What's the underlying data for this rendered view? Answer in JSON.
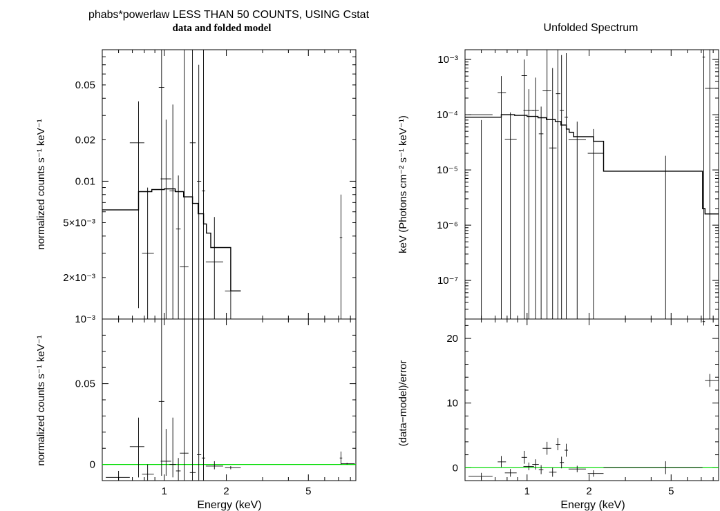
{
  "left": {
    "title": "phabs*powerlaw LESS THAN 50 COUNTS, USING Cstat",
    "subtitle": "data and folded model",
    "top_ylabel": "normalized counts s⁻¹ keV⁻¹",
    "bottom_ylabel": "normalized counts s⁻¹ keV⁻¹",
    "xlabel": "Energy (keV)"
  },
  "right": {
    "title": "Unfolded Spectrum",
    "top_ylabel": "keV (Photons cm⁻² s⁻¹ keV⁻¹)",
    "bottom_ylabel": "(data−model)/error",
    "xlabel": "Energy (keV)"
  },
  "colors": {
    "data": "#000000",
    "model": "#000000",
    "zero_line": "#00dd00"
  },
  "chart_data": [
    {
      "type": "scatter",
      "panel": "left-top",
      "x_scale": "log",
      "y_scale": "log",
      "xlim": [
        0.5,
        8.5
      ],
      "ylim": [
        0.001,
        0.09
      ],
      "x_ticks": [
        {
          "value": 1,
          "label": "1"
        },
        {
          "value": 2,
          "label": "2"
        },
        {
          "value": 5,
          "label": "5"
        }
      ],
      "y_ticks": [
        {
          "value": 0.001,
          "label": "10⁻³"
        },
        {
          "value": 0.002,
          "label": "2×10⁻³"
        },
        {
          "value": 0.005,
          "label": "5×10⁻³"
        },
        {
          "value": 0.01,
          "label": "0.01"
        },
        {
          "value": 0.02,
          "label": "0.02"
        },
        {
          "value": 0.05,
          "label": "0.05"
        }
      ],
      "model": {
        "edges": [
          0.5,
          0.75,
          0.87,
          1.0,
          1.13,
          1.24,
          1.37,
          1.46,
          1.55,
          1.6,
          1.68,
          2.1,
          2.35
        ],
        "values": [
          0.0062,
          0.0084,
          0.0087,
          0.0088,
          0.0084,
          0.0077,
          0.0069,
          0.0058,
          0.0049,
          0.0042,
          0.0033,
          0.0016
        ]
      },
      "points": [
        {
          "x": 0.75,
          "xlo": 0.68,
          "xhi": 0.8,
          "y": 0.019,
          "ylo": 0.0012,
          "yhi": 0.038
        },
        {
          "x": 0.83,
          "xlo": 0.78,
          "xhi": 0.89,
          "y": 0.003,
          "ylo": 0.001,
          "yhi": 0.009
        },
        {
          "x": 0.97,
          "xlo": 0.94,
          "xhi": 1.0,
          "y": 0.048,
          "ylo": 0.001,
          "yhi": 0.09
        },
        {
          "x": 1.02,
          "xlo": 0.96,
          "xhi": 1.08,
          "y": 0.0104,
          "ylo": 0.001,
          "yhi": 0.028
        },
        {
          "x": 1.1,
          "xlo": 1.06,
          "xhi": 1.14,
          "y": 0.0085,
          "ylo": 0.001,
          "yhi": 0.036
        },
        {
          "x": 1.17,
          "xlo": 1.14,
          "xhi": 1.2,
          "y": 0.0045,
          "ylo": 0.001,
          "yhi": 0.011
        },
        {
          "x": 1.25,
          "xlo": 1.19,
          "xhi": 1.31,
          "y": 0.0024,
          "ylo": 0.001,
          "yhi": 0.09
        },
        {
          "x": 1.37,
          "xlo": 1.33,
          "xhi": 1.42,
          "y": 0.019,
          "ylo": 0.001,
          "yhi": 0.09
        },
        {
          "x": 1.47,
          "xlo": 1.44,
          "xhi": 1.51,
          "y": 0.01,
          "ylo": 0.001,
          "yhi": 0.07
        },
        {
          "x": 1.55,
          "xlo": 1.52,
          "xhi": 1.58,
          "y": 0.0085,
          "ylo": 0.001,
          "yhi": 0.09
        },
        {
          "x": 1.75,
          "xlo": 1.59,
          "xhi": 1.93,
          "y": 0.0026,
          "ylo": 0.001,
          "yhi": 0.0055
        },
        {
          "x": 2.1,
          "xlo": 1.97,
          "xhi": 2.35,
          "y": 0.0016,
          "ylo": 0.001,
          "yhi": 0.0027
        },
        {
          "x": 7.2,
          "xlo": 7.1,
          "xhi": 7.3,
          "y": 0.0039,
          "ylo": 0.001,
          "yhi": 0.008
        }
      ]
    },
    {
      "type": "scatter",
      "panel": "left-bottom",
      "x_scale": "log",
      "y_scale": "linear",
      "xlim": [
        0.5,
        8.5
      ],
      "ylim": [
        -0.01,
        0.09
      ],
      "x_ticks": [
        {
          "value": 1,
          "label": "1"
        },
        {
          "value": 2,
          "label": "2"
        },
        {
          "value": 5,
          "label": "5"
        }
      ],
      "y_ticks": [
        {
          "value": 0,
          "label": "0"
        },
        {
          "value": 0.05,
          "label": "0.05"
        }
      ],
      "points": [
        {
          "x": 0.6,
          "xlo": 0.52,
          "xhi": 0.68,
          "y": -0.008,
          "ylo": -0.01,
          "yhi": -0.004
        },
        {
          "x": 0.75,
          "xlo": 0.68,
          "xhi": 0.8,
          "y": 0.011,
          "ylo": -0.008,
          "yhi": 0.029
        },
        {
          "x": 0.83,
          "xlo": 0.78,
          "xhi": 0.89,
          "y": -0.006,
          "ylo": -0.01,
          "yhi": 0.0
        },
        {
          "x": 0.97,
          "xlo": 0.94,
          "xhi": 1.0,
          "y": 0.039,
          "ylo": -0.007,
          "yhi": 0.09
        },
        {
          "x": 1.02,
          "xlo": 0.96,
          "xhi": 1.08,
          "y": 0.002,
          "ylo": -0.007,
          "yhi": 0.022
        },
        {
          "x": 1.1,
          "xlo": 1.06,
          "xhi": 1.14,
          "y": 0.0,
          "ylo": -0.008,
          "yhi": 0.029
        },
        {
          "x": 1.17,
          "xlo": 1.14,
          "xhi": 1.2,
          "y": -0.004,
          "ylo": -0.01,
          "yhi": 0.004
        },
        {
          "x": 1.25,
          "xlo": 1.19,
          "xhi": 1.31,
          "y": 0.007,
          "ylo": -0.01,
          "yhi": 0.09
        },
        {
          "x": 1.37,
          "xlo": 1.33,
          "xhi": 1.42,
          "y": -0.005,
          "ylo": -0.01,
          "yhi": 0.09
        },
        {
          "x": 1.47,
          "xlo": 1.44,
          "xhi": 1.51,
          "y": 0.006,
          "ylo": -0.01,
          "yhi": 0.09
        },
        {
          "x": 1.55,
          "xlo": 1.52,
          "xhi": 1.58,
          "y": 0.004,
          "ylo": -0.01,
          "yhi": 0.09
        },
        {
          "x": 1.75,
          "xlo": 1.59,
          "xhi": 1.93,
          "y": -0.001,
          "ylo": -0.003,
          "yhi": 0.002
        },
        {
          "x": 2.1,
          "xlo": 1.97,
          "xhi": 2.35,
          "y": -0.002,
          "ylo": -0.003,
          "yhi": -0.001
        },
        {
          "x": 7.2,
          "xlo": 7.1,
          "xhi": 7.3,
          "y": 0.004,
          "ylo": 0.0,
          "yhi": 0.008
        },
        {
          "x": 7.7,
          "xlo": 7.2,
          "xhi": 8.4,
          "y": 0.0005,
          "ylo": 0.0,
          "yhi": 0.001
        }
      ]
    },
    {
      "type": "scatter",
      "panel": "right-top",
      "x_scale": "log",
      "y_scale": "log",
      "xlim": [
        0.5,
        8.5
      ],
      "ylim": [
        2e-08,
        0.0015
      ],
      "x_ticks": [
        {
          "value": 1,
          "label": "1"
        },
        {
          "value": 2,
          "label": "2"
        },
        {
          "value": 5,
          "label": "5"
        }
      ],
      "y_ticks": [
        {
          "value": 1e-07,
          "label": "10⁻⁷"
        },
        {
          "value": 1e-06,
          "label": "10⁻⁶"
        },
        {
          "value": 1e-05,
          "label": "10⁻⁵"
        },
        {
          "value": 0.0001,
          "label": "10⁻⁴"
        },
        {
          "value": 0.001,
          "label": "10⁻³"
        }
      ],
      "model": {
        "edges": [
          0.5,
          0.75,
          0.87,
          1.0,
          1.13,
          1.24,
          1.37,
          1.46,
          1.55,
          1.6,
          1.68,
          2.1,
          2.35,
          7.1,
          7.3,
          8.5
        ],
        "values": [
          9e-05,
          0.0001,
          9.7e-05,
          9.3e-05,
          8.8e-05,
          8.2e-05,
          7.5e-05,
          6.5e-05,
          5.5e-05,
          4.8e-05,
          4e-05,
          3.3e-05,
          9.5e-06,
          2e-06,
          1.6e-06
        ]
      },
      "points": [
        {
          "x": 0.6,
          "xlo": 0.52,
          "xhi": 0.68,
          "y": 0.0001,
          "ylo": 2e-08,
          "yhi": 8e-05
        },
        {
          "x": 0.75,
          "xlo": 0.72,
          "xhi": 0.79,
          "y": 0.00025,
          "ylo": 2e-08,
          "yhi": 0.0005
        },
        {
          "x": 0.83,
          "xlo": 0.78,
          "xhi": 0.89,
          "y": 3.6e-05,
          "ylo": 2e-08,
          "yhi": 0.00011
        },
        {
          "x": 0.97,
          "xlo": 0.94,
          "xhi": 1.0,
          "y": 0.00051,
          "ylo": 2e-08,
          "yhi": 0.001
        },
        {
          "x": 1.02,
          "xlo": 0.96,
          "xhi": 1.08,
          "y": 0.00012,
          "ylo": 2e-08,
          "yhi": 0.00029
        },
        {
          "x": 1.1,
          "xlo": 1.06,
          "xhi": 1.14,
          "y": 0.00012,
          "ylo": 2e-08,
          "yhi": 0.00047
        },
        {
          "x": 1.17,
          "xlo": 1.14,
          "xhi": 1.2,
          "y": 4.5e-05,
          "ylo": 2e-08,
          "yhi": 0.00014
        },
        {
          "x": 1.25,
          "xlo": 1.19,
          "xhi": 1.31,
          "y": 0.00027,
          "ylo": 2e-08,
          "yhi": 0.0015
        },
        {
          "x": 1.33,
          "xlo": 1.28,
          "xhi": 1.39,
          "y": 2.5e-05,
          "ylo": 2e-08,
          "yhi": 0.0007
        },
        {
          "x": 1.41,
          "xlo": 1.38,
          "xhi": 1.45,
          "y": 0.00024,
          "ylo": 2e-08,
          "yhi": 0.0015
        },
        {
          "x": 1.47,
          "xlo": 1.44,
          "xhi": 1.51,
          "y": 0.00012,
          "ylo": 2e-08,
          "yhi": 0.0012
        },
        {
          "x": 1.55,
          "xlo": 1.52,
          "xhi": 1.58,
          "y": 9e-05,
          "ylo": 2e-08,
          "yhi": 0.0013
        },
        {
          "x": 1.75,
          "xlo": 1.59,
          "xhi": 1.93,
          "y": 3.5e-05,
          "ylo": 2e-08,
          "yhi": 7.5e-05
        },
        {
          "x": 2.1,
          "xlo": 1.97,
          "xhi": 2.35,
          "y": 2e-05,
          "ylo": 2e-08,
          "yhi": 5.5e-05
        },
        {
          "x": 4.7,
          "xlo": 2.35,
          "xhi": 7.1,
          "y": 9.5e-06,
          "ylo": 2e-08,
          "yhi": 1.8e-05
        },
        {
          "x": 7.2,
          "xlo": 7.1,
          "xhi": 7.3,
          "y": 0.0011,
          "ylo": 2e-08,
          "yhi": 0.0015
        },
        {
          "x": 7.7,
          "xlo": 7.3,
          "xhi": 8.5,
          "y": 0.0003,
          "ylo": 2e-08,
          "yhi": 0.0015
        }
      ]
    },
    {
      "type": "scatter",
      "panel": "right-bottom",
      "x_scale": "log",
      "y_scale": "linear",
      "xlim": [
        0.5,
        8.5
      ],
      "ylim": [
        -2,
        23
      ],
      "x_ticks": [
        {
          "value": 1,
          "label": "1"
        },
        {
          "value": 2,
          "label": "2"
        },
        {
          "value": 5,
          "label": "5"
        }
      ],
      "y_ticks": [
        {
          "value": 0,
          "label": "0"
        },
        {
          "value": 10,
          "label": "10"
        },
        {
          "value": 20,
          "label": "20"
        }
      ],
      "points": [
        {
          "x": 0.6,
          "xlo": 0.52,
          "xhi": 0.68,
          "y": -1.3,
          "ylo": -1.8,
          "yhi": -0.8
        },
        {
          "x": 0.75,
          "xlo": 0.72,
          "xhi": 0.79,
          "y": 0.9,
          "ylo": 0.1,
          "yhi": 1.8
        },
        {
          "x": 0.83,
          "xlo": 0.78,
          "xhi": 0.89,
          "y": -0.8,
          "ylo": -1.4,
          "yhi": -0.2
        },
        {
          "x": 0.97,
          "xlo": 0.94,
          "xhi": 1.0,
          "y": 1.6,
          "ylo": 0.6,
          "yhi": 2.6
        },
        {
          "x": 1.02,
          "xlo": 0.96,
          "xhi": 1.08,
          "y": 0.2,
          "ylo": -0.4,
          "yhi": 0.8
        },
        {
          "x": 1.1,
          "xlo": 1.06,
          "xhi": 1.14,
          "y": 0.5,
          "ylo": -0.3,
          "yhi": 1.3
        },
        {
          "x": 1.17,
          "xlo": 1.14,
          "xhi": 1.2,
          "y": -0.3,
          "ylo": -1.0,
          "yhi": 0.4
        },
        {
          "x": 1.25,
          "xlo": 1.19,
          "xhi": 1.31,
          "y": 3.0,
          "ylo": 2.0,
          "yhi": 4.0
        },
        {
          "x": 1.33,
          "xlo": 1.28,
          "xhi": 1.39,
          "y": -0.7,
          "ylo": -1.4,
          "yhi": 0.0
        },
        {
          "x": 1.41,
          "xlo": 1.38,
          "xhi": 1.45,
          "y": 3.6,
          "ylo": 2.7,
          "yhi": 4.6
        },
        {
          "x": 1.47,
          "xlo": 1.44,
          "xhi": 1.51,
          "y": 0.8,
          "ylo": -0.1,
          "yhi": 1.7
        },
        {
          "x": 1.55,
          "xlo": 1.52,
          "xhi": 1.58,
          "y": 2.7,
          "ylo": 1.7,
          "yhi": 3.7
        },
        {
          "x": 1.75,
          "xlo": 1.59,
          "xhi": 1.93,
          "y": -0.2,
          "ylo": -0.7,
          "yhi": 0.3
        },
        {
          "x": 2.1,
          "xlo": 1.97,
          "xhi": 2.35,
          "y": -0.9,
          "ylo": -1.4,
          "yhi": -0.4
        },
        {
          "x": 4.7,
          "xlo": 2.35,
          "xhi": 7.1,
          "y": 0.0,
          "ylo": -1.0,
          "yhi": 1.0
        },
        {
          "x": 7.2,
          "xlo": 7.1,
          "xhi": 7.3,
          "y": 22.6,
          "ylo": 22.0,
          "yhi": 23.0
        },
        {
          "x": 7.7,
          "xlo": 7.3,
          "xhi": 8.5,
          "y": 13.5,
          "ylo": 12.5,
          "yhi": 14.5
        }
      ]
    }
  ]
}
